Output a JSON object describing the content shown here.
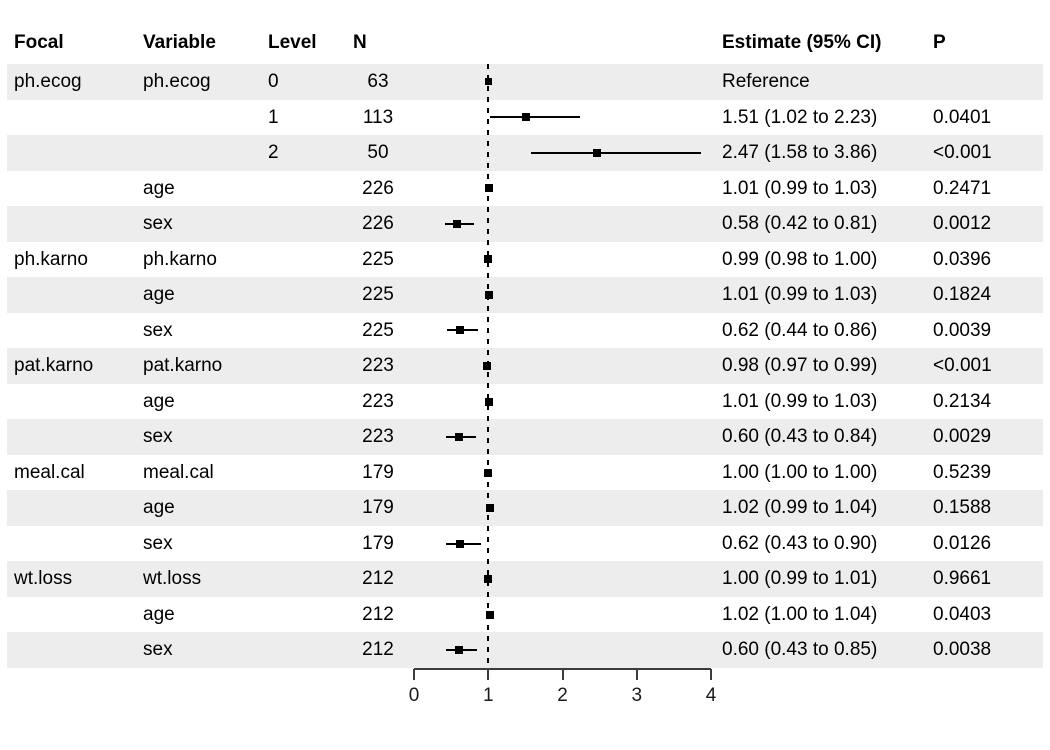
{
  "colors": {
    "stripe": "#EDEDED",
    "ink": "#000000",
    "axis": "#3C3C3C",
    "marker": "#000000",
    "background": "#FFFFFF"
  },
  "columns": {
    "focal": "Focal",
    "variable": "Variable",
    "level": "Level",
    "n": "N",
    "estimate": "Estimate (95% CI)",
    "p": "P"
  },
  "chart_data": {
    "type": "forest",
    "title": "",
    "xlabel": "",
    "xlim": [
      0,
      4
    ],
    "x_ticks": [
      "0",
      "1",
      "2",
      "3",
      "4"
    ],
    "reference_line": 1,
    "legend": "none",
    "grid": "off",
    "rows": [
      {
        "focal": "ph.ecog",
        "variable": "ph.ecog",
        "level": "0",
        "n": "63",
        "estimate": 1.0,
        "ci_low": null,
        "ci_high": null,
        "estimate_label": "Reference",
        "p": "",
        "reference": true,
        "shaded": true
      },
      {
        "focal": "",
        "variable": "",
        "level": "1",
        "n": "113",
        "estimate": 1.51,
        "ci_low": 1.02,
        "ci_high": 2.23,
        "estimate_label": "1.51 (1.02 to 2.23)",
        "p": "0.0401",
        "reference": false,
        "shaded": false
      },
      {
        "focal": "",
        "variable": "",
        "level": "2",
        "n": "50",
        "estimate": 2.47,
        "ci_low": 1.58,
        "ci_high": 3.86,
        "estimate_label": "2.47 (1.58 to 3.86)",
        "p": "<0.001",
        "reference": false,
        "shaded": true
      },
      {
        "focal": "",
        "variable": "age",
        "level": "",
        "n": "226",
        "estimate": 1.01,
        "ci_low": 0.99,
        "ci_high": 1.03,
        "estimate_label": "1.01 (0.99 to 1.03)",
        "p": "0.2471",
        "reference": false,
        "shaded": false
      },
      {
        "focal": "",
        "variable": "sex",
        "level": "",
        "n": "226",
        "estimate": 0.58,
        "ci_low": 0.42,
        "ci_high": 0.81,
        "estimate_label": "0.58 (0.42 to 0.81)",
        "p": "0.0012",
        "reference": false,
        "shaded": true
      },
      {
        "focal": "ph.karno",
        "variable": "ph.karno",
        "level": "",
        "n": "225",
        "estimate": 0.99,
        "ci_low": 0.98,
        "ci_high": 1.0,
        "estimate_label": "0.99 (0.98 to 1.00)",
        "p": "0.0396",
        "reference": false,
        "shaded": false
      },
      {
        "focal": "",
        "variable": "age",
        "level": "",
        "n": "225",
        "estimate": 1.01,
        "ci_low": 0.99,
        "ci_high": 1.03,
        "estimate_label": "1.01 (0.99 to 1.03)",
        "p": "0.1824",
        "reference": false,
        "shaded": true
      },
      {
        "focal": "",
        "variable": "sex",
        "level": "",
        "n": "225",
        "estimate": 0.62,
        "ci_low": 0.44,
        "ci_high": 0.86,
        "estimate_label": "0.62 (0.44 to 0.86)",
        "p": "0.0039",
        "reference": false,
        "shaded": false
      },
      {
        "focal": "pat.karno",
        "variable": "pat.karno",
        "level": "",
        "n": "223",
        "estimate": 0.98,
        "ci_low": 0.97,
        "ci_high": 0.99,
        "estimate_label": "0.98 (0.97 to 0.99)",
        "p": "<0.001",
        "reference": false,
        "shaded": true
      },
      {
        "focal": "",
        "variable": "age",
        "level": "",
        "n": "223",
        "estimate": 1.01,
        "ci_low": 0.99,
        "ci_high": 1.03,
        "estimate_label": "1.01 (0.99 to 1.03)",
        "p": "0.2134",
        "reference": false,
        "shaded": false
      },
      {
        "focal": "",
        "variable": "sex",
        "level": "",
        "n": "223",
        "estimate": 0.6,
        "ci_low": 0.43,
        "ci_high": 0.84,
        "estimate_label": "0.60 (0.43 to 0.84)",
        "p": "0.0029",
        "reference": false,
        "shaded": true
      },
      {
        "focal": "meal.cal",
        "variable": "meal.cal",
        "level": "",
        "n": "179",
        "estimate": 1.0,
        "ci_low": 1.0,
        "ci_high": 1.0,
        "estimate_label": "1.00 (1.00 to 1.00)",
        "p": "0.5239",
        "reference": false,
        "shaded": false
      },
      {
        "focal": "",
        "variable": "age",
        "level": "",
        "n": "179",
        "estimate": 1.02,
        "ci_low": 0.99,
        "ci_high": 1.04,
        "estimate_label": "1.02 (0.99 to 1.04)",
        "p": "0.1588",
        "reference": false,
        "shaded": true
      },
      {
        "focal": "",
        "variable": "sex",
        "level": "",
        "n": "179",
        "estimate": 0.62,
        "ci_low": 0.43,
        "ci_high": 0.9,
        "estimate_label": "0.62 (0.43 to 0.90)",
        "p": "0.0126",
        "reference": false,
        "shaded": false
      },
      {
        "focal": "wt.loss",
        "variable": "wt.loss",
        "level": "",
        "n": "212",
        "estimate": 1.0,
        "ci_low": 0.99,
        "ci_high": 1.01,
        "estimate_label": "1.00 (0.99 to 1.01)",
        "p": "0.9661",
        "reference": false,
        "shaded": true
      },
      {
        "focal": "",
        "variable": "age",
        "level": "",
        "n": "212",
        "estimate": 1.02,
        "ci_low": 1.0,
        "ci_high": 1.04,
        "estimate_label": "1.02 (1.00 to 1.04)",
        "p": "0.0403",
        "reference": false,
        "shaded": false
      },
      {
        "focal": "",
        "variable": "sex",
        "level": "",
        "n": "212",
        "estimate": 0.6,
        "ci_low": 0.43,
        "ci_high": 0.85,
        "estimate_label": "0.60 (0.43 to 0.85)",
        "p": "0.0038",
        "reference": false,
        "shaded": true
      }
    ]
  }
}
